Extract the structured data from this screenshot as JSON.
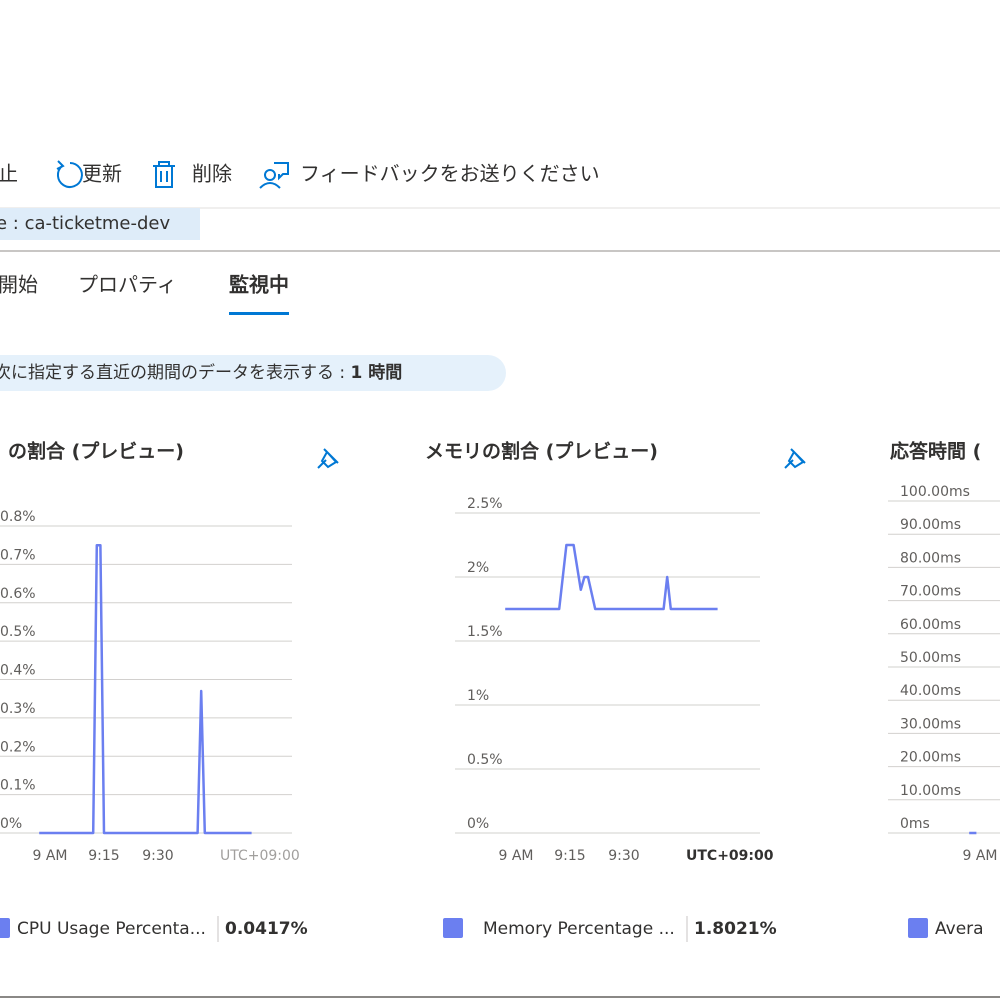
{
  "toolbar": {
    "items": [
      "止",
      "更新",
      "削除",
      "フィードバックをお送りください"
    ]
  },
  "resource_field": "e : ca-ticketme-dev",
  "tabs": {
    "items": [
      "開始",
      "プロパティ",
      "監視中"
    ],
    "selected": 2
  },
  "time_range": {
    "label": "次に指定する直近の期間のデータを表示する : ",
    "value": "1 時間"
  },
  "chart_data": [
    {
      "type": "line",
      "title": "の割合 (プレビュー)",
      "x": [
        "8:57",
        "9:12",
        "9:13",
        "9:14",
        "9:15",
        "9:40",
        "9:41",
        "9:42",
        "9:43",
        "9:56"
      ],
      "series": [
        {
          "name": "CPU Usage Percenta...",
          "color": "#6b7ff0",
          "summary": "0.0417%",
          "values": [
            0,
            0,
            0.75,
            0.75,
            0,
            0,
            0,
            0.37,
            0,
            0
          ]
        }
      ],
      "xlim": [
        "8:57",
        "9:56"
      ],
      "xticks": [
        {
          "value": "9:00",
          "label": "9 AM"
        },
        "9:15",
        "9:30"
      ],
      "timezone_label": "UTC+09:00",
      "ylim": [
        0,
        0.8
      ],
      "yticks": [
        {
          "value": 0,
          "label": "0%"
        },
        {
          "value": 0.1,
          "label": "0.1%"
        },
        {
          "value": 0.2,
          "label": "0.2%"
        },
        {
          "value": 0.3,
          "label": "0.3%"
        },
        {
          "value": 0.4,
          "label": "0.4%"
        },
        {
          "value": 0.5,
          "label": "0.5%"
        },
        {
          "value": 0.6,
          "label": "0.6%"
        },
        {
          "value": 0.7,
          "label": "0.7%"
        },
        {
          "value": 0.8,
          "label": "0.8%"
        }
      ],
      "grid": true
    },
    {
      "type": "line",
      "title": "メモリの割合 (プレビュー)",
      "x": [
        "8:57",
        "9:12",
        "9:14",
        "9:16",
        "9:18",
        "9:19",
        "9:20",
        "9:22",
        "9:41",
        "9:42",
        "9:43",
        "9:56"
      ],
      "series": [
        {
          "name": "Memory Percentage ...",
          "color": "#6b7ff0",
          "summary": "1.8021%",
          "values": [
            1.75,
            1.75,
            2.25,
            2.25,
            1.9,
            2.0,
            2.0,
            1.75,
            1.75,
            2.0,
            1.75,
            1.75
          ]
        }
      ],
      "xlim": [
        "8:57",
        "9:56"
      ],
      "xticks": [
        {
          "value": "9:00",
          "label": "9 AM"
        },
        "9:15",
        "9:30"
      ],
      "timezone_label": "UTC+09:00",
      "ylim": [
        0,
        2.5
      ],
      "yticks": [
        {
          "value": 0,
          "label": "0%"
        },
        {
          "value": 0.5,
          "label": "0.5%"
        },
        {
          "value": 1,
          "label": "1%"
        },
        {
          "value": 1.5,
          "label": "1.5%"
        },
        {
          "value": 2,
          "label": "2%"
        },
        {
          "value": 2.5,
          "label": "2.5%"
        }
      ],
      "grid": true
    },
    {
      "type": "line",
      "title": "応答時間 (",
      "x": [
        "8:57",
        "8:59"
      ],
      "series": [
        {
          "name": "Avera",
          "color": "#6b7ff0",
          "values": [
            0,
            0
          ]
        }
      ],
      "xlim": [
        "8:57",
        "9:56"
      ],
      "xticks": [
        {
          "value": "9:00",
          "label": "9 AM"
        }
      ],
      "ylim": [
        0,
        100
      ],
      "yticks": [
        {
          "value": 0,
          "label": "0ms"
        },
        {
          "value": 10,
          "label": "10.00ms"
        },
        {
          "value": 20,
          "label": "20.00ms"
        },
        {
          "value": 30,
          "label": "30.00ms"
        },
        {
          "value": 40,
          "label": "40.00ms"
        },
        {
          "value": 50,
          "label": "50.00ms"
        },
        {
          "value": 60,
          "label": "60.00ms"
        },
        {
          "value": 70,
          "label": "70.00ms"
        },
        {
          "value": 80,
          "label": "80.00ms"
        },
        {
          "value": 90,
          "label": "90.00ms"
        },
        {
          "value": 100,
          "label": "100.00ms"
        }
      ],
      "grid": true
    }
  ]
}
